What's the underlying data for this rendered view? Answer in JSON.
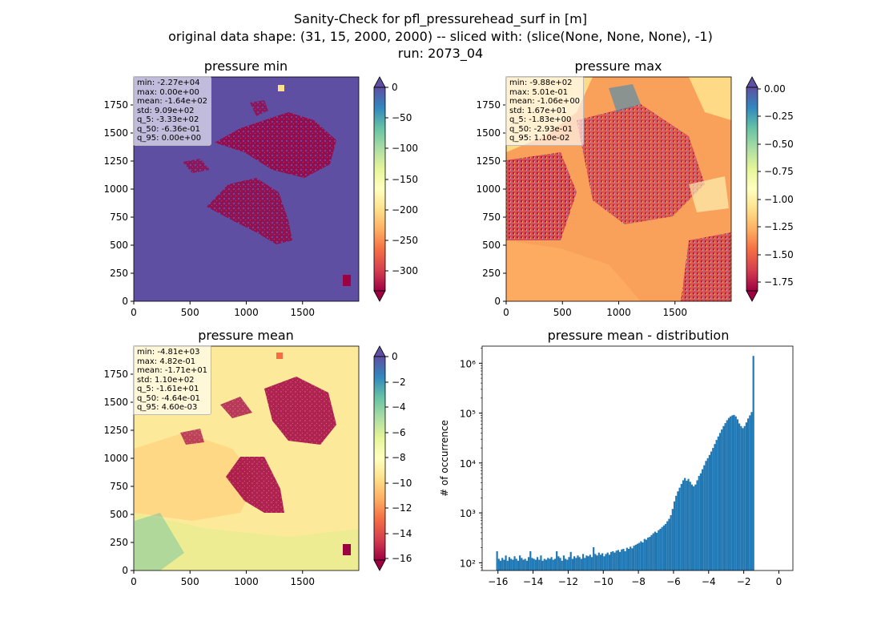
{
  "figure": {
    "title_line1": "Sanity-Check for pfl_pressurehead_surf in [m]",
    "title_line2": "original data shape: (31, 15, 2000, 2000) -- sliced with: (slice(None, None, None), -1)",
    "title_line3": "run: 2073_04"
  },
  "panels": {
    "min": {
      "title": "pressure min",
      "colorbar_ticks": [
        "0",
        "−50",
        "−100",
        "−150",
        "−200",
        "−250",
        "−300"
      ],
      "stats": [
        "min: -2.27e+04",
        "max: 0.00e+00",
        "mean: -1.64e+02",
        "std: 9.09e+02",
        "q_5: -3.33e+02",
        "q_50: -6.36e-01",
        "q_95: 0.00e+00"
      ],
      "vmin": -333,
      "vmax": 0
    },
    "max": {
      "title": "pressure max",
      "colorbar_ticks": [
        "0.00",
        "−0.25",
        "−0.50",
        "−0.75",
        "−1.00",
        "−1.25",
        "−1.50",
        "−1.75"
      ],
      "stats": [
        "min: -9.88e+02",
        "max: 5.01e-01",
        "mean: -1.06e+00",
        "std: 1.67e+01",
        "q_5: -1.83e+00",
        "q_50: -2.93e-01",
        "q_95: 1.10e-02"
      ],
      "vmin": -1.83,
      "vmax": 0.011
    },
    "mean": {
      "title": "pressure mean",
      "colorbar_ticks": [
        "0",
        "−2",
        "−4",
        "−6",
        "−8",
        "−10",
        "−12",
        "−14",
        "−16"
      ],
      "stats": [
        "min: -4.81e+03",
        "max: 4.82e-01",
        "mean: -1.71e+01",
        "std: 1.10e+02",
        "q_5: -1.61e+01",
        "q_50: -4.64e-01",
        "q_95: 4.60e-03"
      ],
      "vmin": -16.1,
      "vmax": 0.0046
    }
  },
  "map_axes": {
    "x_ticks": [
      "0",
      "500",
      "1000",
      "1500"
    ],
    "y_ticks": [
      "0",
      "250",
      "500",
      "750",
      "1000",
      "1250",
      "1500",
      "1750"
    ]
  },
  "colors": {
    "spectral_min": "#9e0142",
    "spectral_mid": "#ffffbf",
    "spectral_max": "#5e4fa2",
    "histogram_bar": "#1f77b4"
  },
  "chart_data": [
    {
      "type": "heatmap",
      "title": "pressure min",
      "colormap": "Spectral",
      "xlim": [
        0,
        2000
      ],
      "ylim": [
        0,
        2000
      ],
      "clim": [
        -333,
        0
      ],
      "colorbar_extend": "both"
    },
    {
      "type": "heatmap",
      "title": "pressure max",
      "colormap": "Spectral",
      "xlim": [
        0,
        2000
      ],
      "ylim": [
        0,
        2000
      ],
      "clim": [
        -1.83,
        0.011
      ],
      "colorbar_extend": "both"
    },
    {
      "type": "heatmap",
      "title": "pressure mean",
      "colormap": "Spectral",
      "xlim": [
        0,
        2000
      ],
      "ylim": [
        0,
        2000
      ],
      "clim": [
        -16.1,
        0.0046
      ],
      "colorbar_extend": "both"
    },
    {
      "type": "bar",
      "title": "pressure mean - distribution",
      "xlabel": "",
      "ylabel": "# of occurrence",
      "yscale": "log",
      "xlim": [
        -16.9,
        0.8
      ],
      "ylim": [
        70,
        2200000
      ],
      "x_ticks": [
        "−16",
        "−14",
        "−12",
        "−10",
        "−8",
        "−6",
        "−4",
        "−2",
        "0"
      ],
      "y_ticks": [
        "10²",
        "10³",
        "10⁴",
        "10⁵",
        "10⁶"
      ],
      "bin_start": -16.1,
      "bin_width": 0.1,
      "values": [
        170,
        120,
        110,
        125,
        115,
        140,
        110,
        130,
        120,
        115,
        135,
        120,
        110,
        140,
        125,
        115,
        120,
        110,
        130,
        170,
        125,
        120,
        115,
        130,
        115,
        140,
        110,
        120,
        115,
        125,
        120,
        130,
        115,
        120,
        170,
        135,
        125,
        110,
        140,
        120,
        115,
        130,
        165,
        120,
        135,
        125,
        140,
        130,
        120,
        150,
        125,
        140,
        135,
        145,
        130,
        205,
        150,
        140,
        160,
        145,
        155,
        135,
        150,
        160,
        145,
        165,
        170,
        160,
        175,
        180,
        165,
        185,
        190,
        170,
        200,
        190,
        210,
        195,
        220,
        230,
        240,
        250,
        270,
        255,
        300,
        290,
        320,
        330,
        360,
        390,
        420,
        400,
        450,
        480,
        520,
        560,
        600,
        680,
        760,
        900,
        1200,
        1700,
        2200,
        2700,
        3200,
        3800,
        4500,
        5000,
        4400,
        4800,
        4200,
        3700,
        3400,
        3700,
        4500,
        5500,
        6200,
        7500,
        9000,
        11000,
        12500,
        14500,
        17000,
        20000,
        24000,
        29000,
        34000,
        40000,
        47000,
        55000,
        63000,
        72000,
        80000,
        86000,
        90000,
        92000,
        86000,
        75000,
        62000,
        55000,
        50000,
        55000,
        65000,
        78000,
        90000,
        105000,
        1400000
      ]
    }
  ]
}
